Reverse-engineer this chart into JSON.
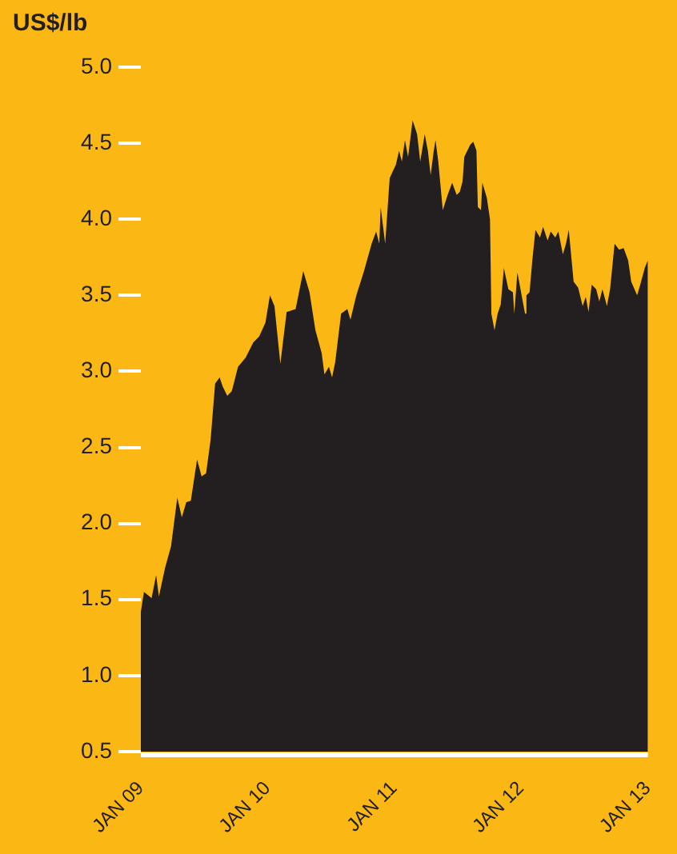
{
  "chart_data": {
    "type": "area",
    "ylabel": "US$/lb",
    "color": "#231f20",
    "x": [
      "2009-01-01",
      "2009-01-10",
      "2009-02-01",
      "2009-02-14",
      "2009-02-22",
      "2009-03-12",
      "2009-03-29",
      "2009-04-16",
      "2009-04-29",
      "2009-05-12",
      "2009-05-25",
      "2009-06-12",
      "2009-06-25",
      "2009-07-08",
      "2009-07-21",
      "2009-08-03",
      "2009-08-16",
      "2009-08-25",
      "2009-09-07",
      "2009-09-20",
      "2009-10-08",
      "2009-10-30",
      "2009-11-21",
      "2009-12-08",
      "2009-12-26",
      "2010-01-08",
      "2010-01-21",
      "2010-02-07",
      "2010-02-25",
      "2010-03-23",
      "2010-04-14",
      "2010-05-02",
      "2010-05-19",
      "2010-06-06",
      "2010-06-14",
      "2010-06-27",
      "2010-07-06",
      "2010-07-15",
      "2010-08-01",
      "2010-08-19",
      "2010-08-28",
      "2010-09-14",
      "2010-10-06",
      "2010-10-28",
      "2010-11-10",
      "2010-11-19",
      "2010-11-23",
      "2010-12-06",
      "2010-12-19",
      "2011-01-06",
      "2011-01-15",
      "2011-01-23",
      "2011-02-01",
      "2011-02-10",
      "2011-02-23",
      "2011-03-08",
      "2011-03-17",
      "2011-03-30",
      "2011-04-08",
      "2011-04-16",
      "2011-04-25",
      "2011-04-30",
      "2011-05-08",
      "2011-05-21",
      "2011-06-04",
      "2011-06-17",
      "2011-06-30",
      "2011-07-09",
      "2011-07-17",
      "2011-07-22",
      "2011-08-08",
      "2011-08-17",
      "2011-08-26",
      "2011-08-30",
      "2011-09-08",
      "2011-09-12",
      "2011-09-25",
      "2011-10-04",
      "2011-10-08",
      "2011-10-17",
      "2011-10-26",
      "2011-11-04",
      "2011-11-13",
      "2011-11-26",
      "2011-12-09",
      "2011-12-13",
      "2011-12-22",
      "2012-01-04",
      "2012-01-13",
      "2012-01-17",
      "2012-01-26",
      "2012-02-03",
      "2012-02-12",
      "2012-02-25",
      "2012-03-05",
      "2012-03-18",
      "2012-03-27",
      "2012-04-09",
      "2012-04-18",
      "2012-05-01",
      "2012-05-10",
      "2012-05-18",
      "2012-06-01",
      "2012-06-14",
      "2012-06-27",
      "2012-07-06",
      "2012-07-14",
      "2012-07-23",
      "2012-08-05",
      "2012-08-14",
      "2012-08-23",
      "2012-09-05",
      "2012-09-14",
      "2012-09-27",
      "2012-10-10",
      "2012-10-23",
      "2012-11-05",
      "2012-11-14",
      "2012-12-01",
      "2012-12-10",
      "2012-12-23",
      "2013-01-01"
    ],
    "values": [
      1.42,
      1.55,
      1.51,
      1.66,
      1.52,
      1.71,
      1.85,
      2.17,
      2.04,
      2.14,
      2.15,
      2.42,
      2.31,
      2.33,
      2.55,
      2.92,
      2.96,
      2.9,
      2.84,
      2.87,
      3.03,
      3.09,
      3.19,
      3.23,
      3.32,
      3.5,
      3.43,
      3.05,
      3.39,
      3.41,
      3.66,
      3.52,
      3.27,
      3.12,
      2.98,
      3.03,
      2.96,
      3.06,
      3.38,
      3.41,
      3.34,
      3.5,
      3.66,
      3.84,
      3.92,
      3.84,
      4.08,
      3.84,
      4.27,
      4.36,
      4.45,
      4.38,
      4.52,
      4.41,
      4.65,
      4.56,
      4.38,
      4.56,
      4.45,
      4.29,
      4.45,
      4.52,
      4.38,
      4.06,
      4.16,
      4.24,
      4.16,
      4.18,
      4.25,
      4.41,
      4.49,
      4.51,
      4.45,
      4.08,
      4.06,
      4.24,
      4.14,
      4.0,
      3.38,
      3.27,
      3.38,
      3.44,
      3.68,
      3.54,
      3.52,
      3.38,
      3.65,
      3.49,
      3.38,
      3.5,
      3.52,
      3.73,
      3.93,
      3.88,
      3.95,
      3.86,
      3.92,
      3.88,
      3.92,
      3.77,
      3.84,
      3.93,
      3.59,
      3.55,
      3.43,
      3.49,
      3.39,
      3.57,
      3.54,
      3.46,
      3.54,
      3.43,
      3.54,
      3.84,
      3.8,
      3.81,
      3.73,
      3.59,
      3.5,
      3.57,
      3.68,
      3.73
    ],
    "xlim": [
      "2009-01",
      "2013-01"
    ],
    "xticks": [
      {
        "value": "2009-01",
        "label": "JAN 09"
      },
      {
        "value": "2010-01",
        "label": "JAN 10"
      },
      {
        "value": "2011-01",
        "label": "JAN 11"
      },
      {
        "value": "2012-01",
        "label": "JAN 12"
      },
      {
        "value": "2013-01",
        "label": "JAN 13"
      }
    ],
    "ylim": [
      0.5,
      5.0
    ],
    "yticks": [
      {
        "value": 0.5,
        "label": "0.5"
      },
      {
        "value": 1.0,
        "label": "1.0"
      },
      {
        "value": 1.5,
        "label": "1.5"
      },
      {
        "value": 2.0,
        "label": "2.0"
      },
      {
        "value": 2.5,
        "label": "2.5"
      },
      {
        "value": 3.0,
        "label": "3.0"
      },
      {
        "value": 3.5,
        "label": "3.5"
      },
      {
        "value": 4.0,
        "label": "4.0"
      },
      {
        "value": 4.5,
        "label": "4.5"
      },
      {
        "value": 5.0,
        "label": "5.0"
      }
    ]
  }
}
